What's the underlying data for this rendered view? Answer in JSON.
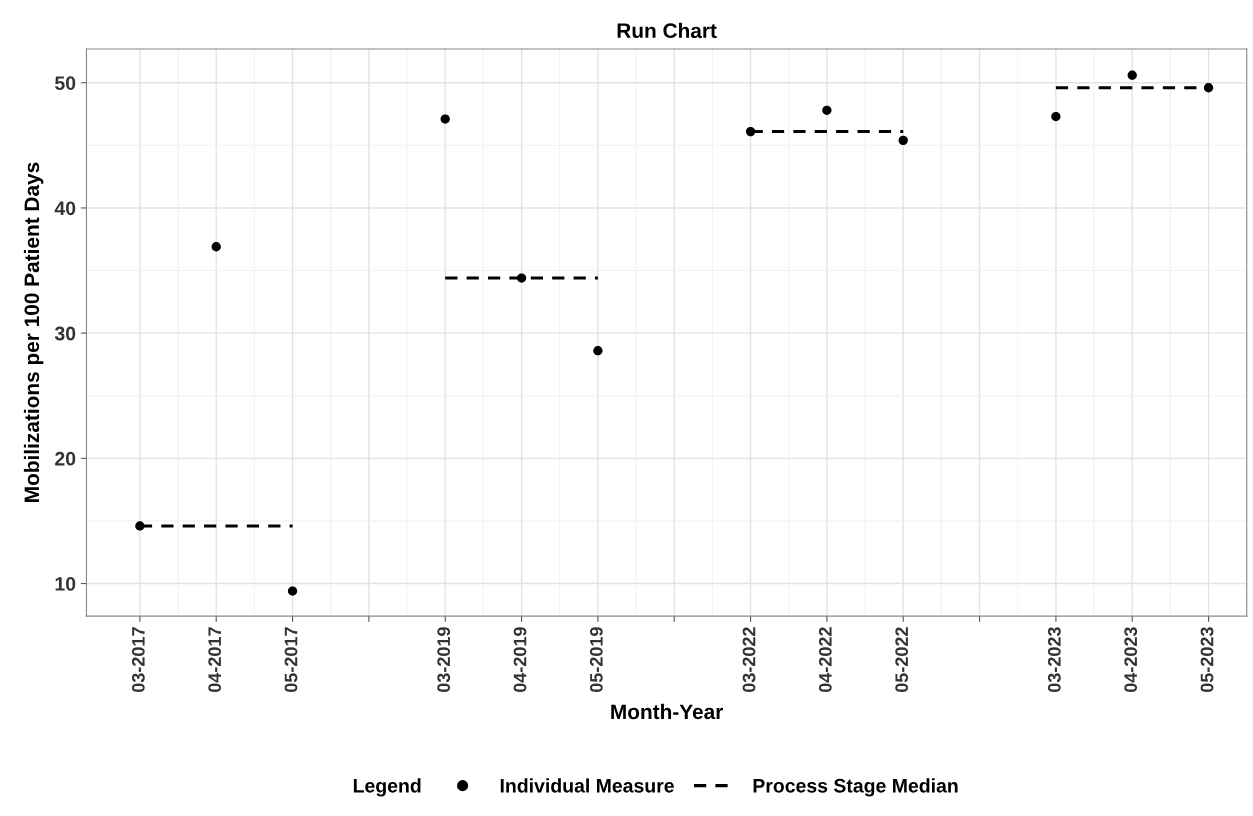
{
  "chart_data": {
    "type": "scatter",
    "title": "Run Chart",
    "xlabel": "Month-Year",
    "ylabel": "Mobilizations per 100 Patient Days",
    "legend_title": "Legend",
    "categories": [
      "03-2017",
      "04-2017",
      "05-2017",
      null,
      "03-2019",
      "04-2019",
      "05-2019",
      null,
      "03-2022",
      "04-2022",
      "05-2022",
      null,
      "03-2023",
      "04-2023",
      "05-2023"
    ],
    "series": [
      {
        "name": "Individual Measure",
        "color": "#000000",
        "marker": "circle",
        "values": [
          14.6,
          36.9,
          9.4,
          null,
          47.1,
          34.4,
          28.6,
          null,
          46.1,
          47.8,
          45.4,
          null,
          47.3,
          50.6,
          49.6
        ]
      },
      {
        "name": "Process Stage Median",
        "type": "line",
        "color": "#000000",
        "marker": "none",
        "line_style": "dashed",
        "values": [
          14.6,
          14.6,
          14.6,
          null,
          34.4,
          34.4,
          34.4,
          null,
          46.1,
          46.1,
          46.1,
          null,
          49.6,
          49.6,
          49.6
        ]
      }
    ],
    "ylim": [
      7.4,
      52.7
    ],
    "yticks": [
      10,
      20,
      30,
      40,
      50
    ],
    "grid": true,
    "legend": "bottom"
  }
}
